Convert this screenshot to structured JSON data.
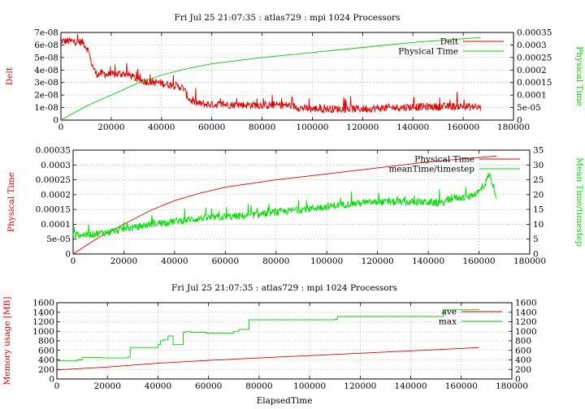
{
  "chart_data": [
    {
      "type": "line",
      "title": "Fri Jul 25 21:07:35 : atlas729 : mpi 1024 Processors",
      "xlabel": "",
      "ylabel": "Delt",
      "y2label": "Physical Time",
      "xlim": [
        0,
        180000
      ],
      "ylim": [
        0,
        7e-08
      ],
      "y2lim": [
        0,
        0.00035
      ],
      "xticks": [
        "0",
        "20000",
        "40000",
        "60000",
        "80000",
        "100000",
        "120000",
        "140000",
        "160000",
        "180000"
      ],
      "yticks": [
        "0",
        "1e-08",
        "2e-08",
        "3e-08",
        "4e-08",
        "5e-08",
        "6e-08",
        "7e-08"
      ],
      "y2ticks": [
        "0",
        "5e-05",
        "0.0001",
        "0.00015",
        "0.0002",
        "0.00025",
        "0.0003",
        "0.00035"
      ],
      "grid": true,
      "legend_position": "top-right",
      "series": [
        {
          "name": "Delt",
          "axis": "y",
          "color": "#dd0000",
          "noisy": true,
          "x": [
            0,
            4000,
            9000,
            11000,
            12000,
            14000,
            17000,
            20000,
            23000,
            26000,
            28000,
            30000,
            32000,
            36000,
            40000,
            44000,
            47000,
            49000,
            50000,
            51000,
            52000,
            55000,
            60000,
            80000,
            90000,
            94000,
            96000,
            100000,
            120000,
            140000,
            160000,
            167000
          ],
          "y": [
            6.3e-08,
            6.3e-08,
            6.2e-08,
            5.5e-08,
            4.6e-08,
            3.7e-08,
            3.7e-08,
            3.6e-08,
            3.7e-08,
            3.7e-08,
            3.5e-08,
            3.3e-08,
            3.15e-08,
            3.05e-08,
            2.95e-08,
            2.8e-08,
            2.7e-08,
            2.5e-08,
            2e-08,
            1.7e-08,
            1.5e-08,
            1.3e-08,
            1.25e-08,
            1.2e-08,
            1.2e-08,
            1.05e-08,
            9.5e-09,
            9e-09,
            9e-09,
            1.05e-08,
            1.1e-08,
            1e-08
          ]
        },
        {
          "name": "Physical Time",
          "axis": "y2",
          "color": "#00cc00",
          "x": [
            0,
            5000,
            10000,
            15000,
            20000,
            30000,
            40000,
            50000,
            60000,
            80000,
            100000,
            120000,
            140000,
            160000,
            167000
          ],
          "y": [
            0,
            2.8e-05,
            5.5e-05,
            7.8e-05,
            0.0001,
            0.000145,
            0.00018,
            0.000205,
            0.000225,
            0.00025,
            0.00027,
            0.00029,
            0.00031,
            0.000325,
            0.00033
          ]
        }
      ]
    },
    {
      "type": "line",
      "title": "",
      "xlabel": "",
      "ylabel": "Physical Time",
      "y2label": "Mean Time/timestep",
      "xlim": [
        0,
        180000
      ],
      "ylim": [
        0,
        0.00035
      ],
      "y2lim": [
        0,
        35
      ],
      "xticks": [
        "0",
        "20000",
        "40000",
        "60000",
        "80000",
        "100000",
        "120000",
        "140000",
        "160000",
        "180000"
      ],
      "yticks": [
        "0",
        "5e-05",
        "0.0001",
        "0.00015",
        "0.0002",
        "0.00025",
        "0.0003",
        "0.00035"
      ],
      "y2ticks": [
        "0",
        "5",
        "10",
        "15",
        "20",
        "25",
        "30",
        "35"
      ],
      "grid": true,
      "legend_position": "top-right",
      "series": [
        {
          "name": "Physical Time",
          "axis": "y",
          "color": "#dd0000",
          "x": [
            0,
            5000,
            10000,
            15000,
            20000,
            30000,
            40000,
            50000,
            60000,
            80000,
            100000,
            120000,
            140000,
            160000,
            167000
          ],
          "y": [
            0,
            2.8e-05,
            5.5e-05,
            7.8e-05,
            0.0001,
            0.000145,
            0.00018,
            0.000205,
            0.000225,
            0.00025,
            0.00027,
            0.00029,
            0.00031,
            0.000325,
            0.00033
          ]
        },
        {
          "name": "meanTime/timestep",
          "axis": "y2",
          "color": "#00dd00",
          "noisy": true,
          "x": [
            0,
            5000,
            10000,
            15000,
            20000,
            25000,
            30000,
            40000,
            50000,
            60000,
            70000,
            80000,
            90000,
            100000,
            110000,
            120000,
            130000,
            140000,
            145000,
            150000,
            155000,
            160000,
            162000,
            164000,
            166000,
            167000
          ],
          "y": [
            6.5,
            6.5,
            7,
            7.5,
            8.5,
            9,
            10,
            11,
            12,
            12.5,
            13,
            14,
            15,
            16,
            17,
            17.5,
            17.5,
            17.5,
            17,
            19,
            19,
            21,
            23,
            27,
            22,
            19
          ]
        }
      ]
    },
    {
      "type": "line",
      "title": "Fri Jul 25 21:07:35 : atlas729 : mpi 1024 Processors",
      "xlabel": "ElapsedTime",
      "ylabel": "Memory usage [MB]",
      "y2label": "",
      "xlim": [
        0,
        180000
      ],
      "ylim": [
        0,
        1600
      ],
      "y2lim": [
        0,
        1600
      ],
      "xticks": [
        "0",
        "20000",
        "40000",
        "60000",
        "80000",
        "100000",
        "120000",
        "140000",
        "160000",
        "180000"
      ],
      "yticks": [
        "0",
        "200",
        "400",
        "600",
        "800",
        "1000",
        "1200",
        "1400",
        "1600"
      ],
      "y2ticks": [
        "0",
        "200",
        "400",
        "600",
        "800",
        "1000",
        "1200",
        "1400",
        "1600"
      ],
      "grid": true,
      "legend_position": "top-right",
      "series": [
        {
          "name": "ave",
          "axis": "y",
          "color": "#dd0000",
          "x": [
            0,
            20000,
            40000,
            60000,
            80000,
            100000,
            120000,
            140000,
            160000,
            167000
          ],
          "y": [
            190,
            250,
            330,
            390,
            440,
            490,
            540,
            590,
            640,
            660
          ]
        },
        {
          "name": "max",
          "axis": "y",
          "color": "#00cc00",
          "step": true,
          "x": [
            0,
            8000,
            10000,
            18000,
            28000,
            29000,
            40000,
            41000,
            42000,
            44000,
            46000,
            50000,
            51000,
            53000,
            59000,
            70000,
            72000,
            75000,
            76000,
            110000,
            111000,
            152000,
            153000,
            167000
          ],
          "y": [
            380,
            400,
            450,
            440,
            460,
            660,
            720,
            800,
            820,
            900,
            720,
            980,
            1000,
            980,
            960,
            1000,
            1040,
            1040,
            1240,
            1250,
            1310,
            1310,
            1450,
            1460
          ]
        }
      ]
    }
  ]
}
